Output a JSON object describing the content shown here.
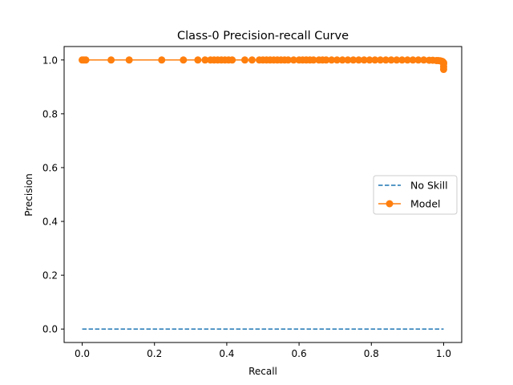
{
  "chart_data": {
    "type": "line",
    "title": "Class-0 Precision-recall Curve",
    "xlabel": "Recall",
    "ylabel": "Precision",
    "xlim": [
      -0.05,
      1.05
    ],
    "ylim": [
      -0.05,
      1.05
    ],
    "xticks": [
      0.0,
      0.2,
      0.4,
      0.6,
      0.8,
      1.0
    ],
    "xtick_labels": [
      "0.0",
      "0.2",
      "0.4",
      "0.6",
      "0.8",
      "1.0"
    ],
    "yticks": [
      0.0,
      0.2,
      0.4,
      0.6,
      0.8,
      1.0
    ],
    "ytick_labels": [
      "0.0",
      "0.2",
      "0.4",
      "0.6",
      "0.8",
      "1.0"
    ],
    "grid": false,
    "legend_position": "center-right",
    "series": [
      {
        "name": "No Skill",
        "style": "dashed",
        "color": "#1f77b4",
        "x": [
          0.0,
          1.0
        ],
        "y": [
          0.0,
          0.0
        ]
      },
      {
        "name": "Model",
        "style": "solid-marker",
        "color": "#ff7f0e",
        "x": [
          0.0,
          0.005,
          0.01,
          0.08,
          0.13,
          0.22,
          0.28,
          0.32,
          0.34,
          0.355,
          0.365,
          0.375,
          0.385,
          0.395,
          0.405,
          0.415,
          0.45,
          0.47,
          0.49,
          0.5,
          0.51,
          0.52,
          0.53,
          0.54,
          0.55,
          0.56,
          0.57,
          0.585,
          0.6,
          0.61,
          0.62,
          0.63,
          0.64,
          0.655,
          0.665,
          0.675,
          0.69,
          0.705,
          0.72,
          0.735,
          0.75,
          0.765,
          0.78,
          0.795,
          0.81,
          0.825,
          0.84,
          0.855,
          0.87,
          0.885,
          0.9,
          0.915,
          0.93,
          0.945,
          0.96,
          0.97,
          0.98,
          0.985,
          0.99,
          0.993,
          0.996,
          0.998,
          1.0,
          1.0,
          1.0,
          1.0
        ],
        "y": [
          1.0,
          1.0,
          1.0,
          1.0,
          1.0,
          1.0,
          1.0,
          1.0,
          1.0,
          1.0,
          1.0,
          1.0,
          1.0,
          1.0,
          1.0,
          1.0,
          1.0,
          1.0,
          1.0,
          1.0,
          1.0,
          1.0,
          1.0,
          1.0,
          1.0,
          1.0,
          1.0,
          1.0,
          1.0,
          1.0,
          1.0,
          1.0,
          1.0,
          1.0,
          1.0,
          1.0,
          1.0,
          1.0,
          1.0,
          1.0,
          1.0,
          1.0,
          1.0,
          1.0,
          1.0,
          1.0,
          1.0,
          1.0,
          1.0,
          1.0,
          1.0,
          1.0,
          1.0,
          1.0,
          0.999,
          0.999,
          0.998,
          0.998,
          0.997,
          0.996,
          0.995,
          0.993,
          0.99,
          0.985,
          0.975,
          0.965
        ]
      }
    ]
  }
}
